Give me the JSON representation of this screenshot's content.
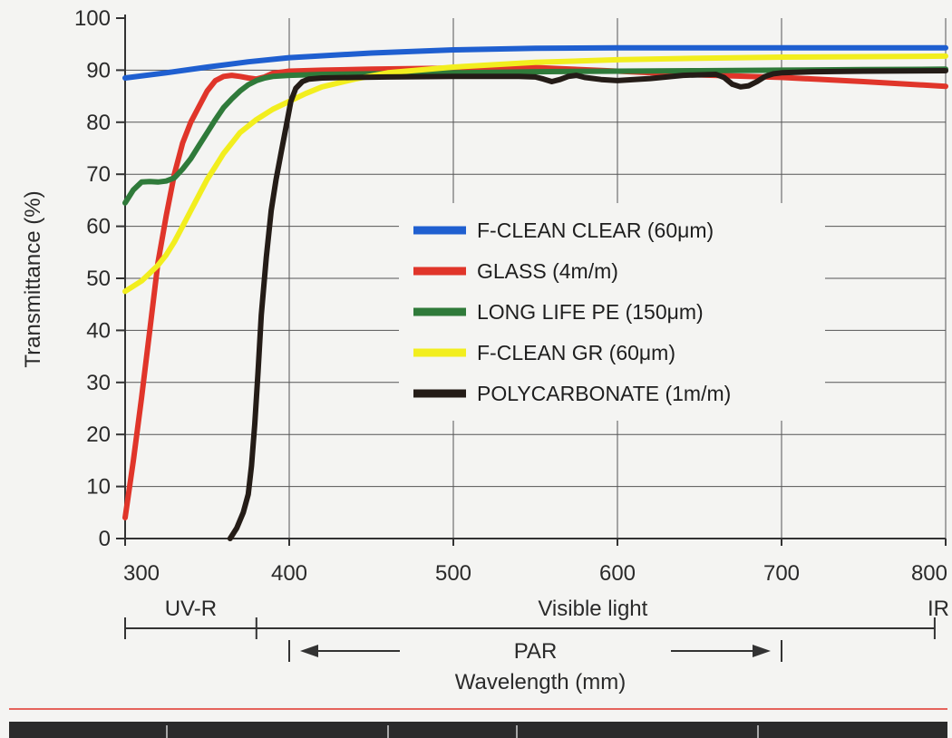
{
  "chart_data": {
    "type": "line",
    "title": "",
    "xlabel": "Wavelength (mm)",
    "ylabel": "Transmittance (%)",
    "xlim": [
      300,
      800
    ],
    "ylim": [
      0,
      100
    ],
    "x_ticks": [
      "300",
      "400",
      "500",
      "600",
      "700",
      "800"
    ],
    "y_ticks": [
      "0",
      "10",
      "20",
      "30",
      "40",
      "50",
      "60",
      "70",
      "80",
      "90",
      "100"
    ],
    "grid": "horizontal",
    "legend_position": "center-right",
    "series": [
      {
        "name": "F-CLEAN CLEAR (60μm)",
        "color": "#1f5fd0",
        "x": [
          300,
          325,
          350,
          375,
          400,
          450,
          500,
          550,
          600,
          650,
          700,
          750,
          800
        ],
        "y": [
          88.5,
          89.5,
          90.6,
          91.6,
          92.4,
          93.3,
          93.9,
          94.2,
          94.3,
          94.3,
          94.3,
          94.3,
          94.3
        ]
      },
      {
        "name": "GLASS (4m/m)",
        "color": "#e0352a",
        "x": [
          300,
          305,
          310,
          315,
          320,
          325,
          330,
          335,
          340,
          345,
          350,
          355,
          360,
          365,
          370,
          375,
          380,
          385,
          390,
          400,
          420,
          450,
          500,
          550,
          600,
          650,
          700,
          750,
          800
        ],
        "y": [
          4,
          15,
          27,
          40,
          53,
          62,
          70,
          76,
          80,
          83,
          86,
          88,
          88.8,
          89,
          88.8,
          88.5,
          88.3,
          88.7,
          89.4,
          89.8,
          90,
          90.2,
          90.4,
          90.5,
          89.8,
          89.1,
          88.6,
          87.8,
          86.9
        ]
      },
      {
        "name": "LONG LIFE PE (150μm)",
        "color": "#2f7a3a",
        "x": [
          300,
          305,
          310,
          315,
          320,
          325,
          330,
          335,
          340,
          345,
          350,
          355,
          360,
          365,
          370,
          375,
          380,
          385,
          390,
          400,
          420,
          450,
          500,
          550,
          600,
          650,
          700,
          750,
          800
        ],
        "y": [
          64.5,
          67,
          68.5,
          68.6,
          68.5,
          68.7,
          69.3,
          71,
          73,
          75.5,
          78,
          80.5,
          82.8,
          84.5,
          86,
          87.2,
          88,
          88.5,
          88.8,
          89,
          89.2,
          89.3,
          89.5,
          89.7,
          89.8,
          89.9,
          90,
          90.1,
          90.2
        ]
      },
      {
        "name": "F-CLEAN GR (60μm)",
        "color": "#f2ee1e",
        "x": [
          300,
          305,
          310,
          315,
          320,
          325,
          330,
          335,
          340,
          345,
          350,
          355,
          360,
          365,
          370,
          380,
          390,
          400,
          410,
          420,
          440,
          460,
          500,
          550,
          600,
          650,
          700,
          750,
          800
        ],
        "y": [
          47.5,
          48.5,
          49.5,
          51,
          52.5,
          54.5,
          57,
          60,
          63,
          66,
          69,
          71.5,
          74,
          76,
          78,
          80.5,
          82.5,
          84,
          85.5,
          86.8,
          88.3,
          89.5,
          90.6,
          91.5,
          92,
          92.3,
          92.5,
          92.6,
          92.7
        ]
      },
      {
        "name": "POLYCARBONATE (1m/m)",
        "color": "#241c17",
        "x": [
          364,
          368,
          372,
          375,
          377,
          379,
          381,
          383,
          386,
          389,
          392,
          395,
          398,
          401,
          404,
          408,
          412,
          420,
          440,
          460,
          500,
          540,
          550,
          555,
          560,
          565,
          570,
          575,
          580,
          590,
          600,
          620,
          640,
          660,
          665,
          670,
          675,
          680,
          685,
          690,
          695,
          700,
          720,
          750,
          800
        ],
        "y": [
          0,
          2,
          5,
          8.5,
          14,
          22,
          32,
          43,
          54,
          63,
          69,
          74,
          79,
          84,
          86.5,
          87.8,
          88.3,
          88.5,
          88.6,
          88.7,
          88.8,
          88.8,
          88.7,
          88.3,
          87.8,
          88.2,
          88.8,
          89,
          88.6,
          88.2,
          88,
          88.4,
          89,
          89.2,
          88.6,
          87.3,
          86.8,
          87,
          87.8,
          88.8,
          89.3,
          89.5,
          89.7,
          89.8,
          89.9
        ]
      }
    ],
    "annotations": {
      "regions": [
        {
          "label": "UV-R",
          "from": 300,
          "to": 380
        },
        {
          "label": "Visible light",
          "from": 380,
          "to": 790
        },
        {
          "label": "IR",
          "from": 790,
          "to": 800
        }
      ],
      "par": {
        "label": "PAR",
        "from": 400,
        "to": 700
      }
    }
  },
  "colors": {
    "background": "#f4f4f2",
    "footer_red_rule": "#e0352a",
    "footer_bar": "#2b2b2b"
  }
}
